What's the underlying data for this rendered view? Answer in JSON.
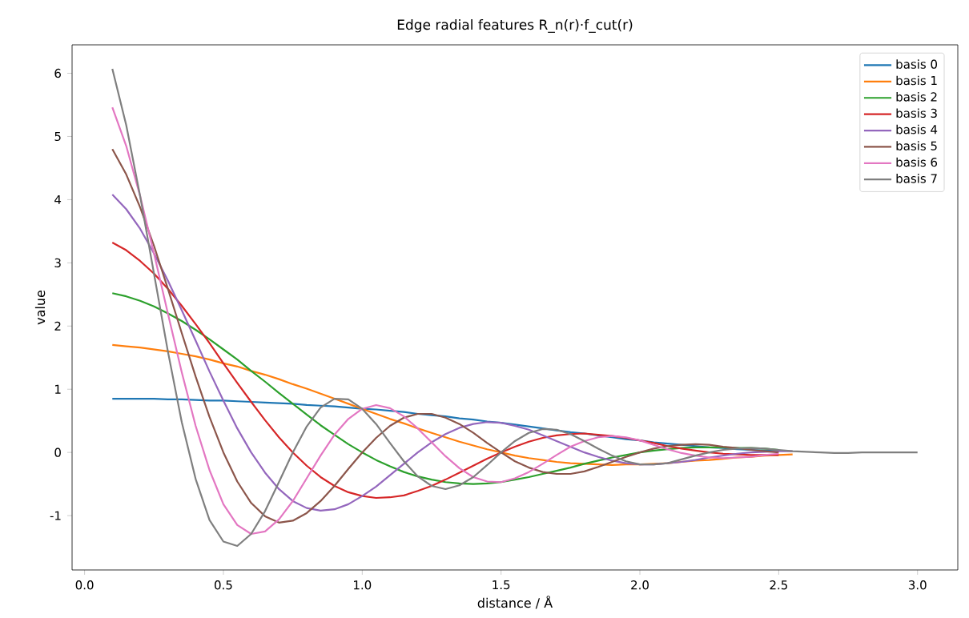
{
  "chart_data": {
    "type": "line",
    "title": "Edge radial features  R_n(r)·f_cut(r)",
    "xlabel": "distance / Å",
    "ylabel": "value",
    "x": [
      0.1,
      0.15,
      0.2,
      0.25,
      0.3,
      0.35,
      0.4,
      0.45,
      0.5,
      0.55,
      0.6,
      0.65,
      0.7,
      0.75,
      0.8,
      0.85,
      0.9,
      0.95,
      1.0,
      1.05,
      1.1,
      1.15,
      1.2,
      1.25,
      1.3,
      1.35,
      1.4,
      1.45,
      1.5,
      1.55,
      1.6,
      1.65,
      1.7,
      1.75,
      1.8,
      1.85,
      1.9,
      1.95,
      2.0,
      2.05,
      2.1,
      2.15,
      2.2,
      2.25,
      2.3,
      2.35,
      2.4,
      2.45,
      2.5,
      2.55,
      2.6,
      2.65,
      2.7,
      2.75,
      2.8,
      2.85,
      2.9,
      2.95,
      3.0
    ],
    "xlim": [
      -0.045,
      3.145
    ],
    "ylim": [
      -1.86,
      6.45
    ],
    "xticks": [
      {
        "value": 0,
        "label": "0.0"
      },
      {
        "value": 0.5,
        "label": "0.5"
      },
      {
        "value": 1,
        "label": "1.0"
      },
      {
        "value": 1.5,
        "label": "1.5"
      },
      {
        "value": 2,
        "label": "2.0"
      },
      {
        "value": 2.5,
        "label": "2.5"
      },
      {
        "value": 3,
        "label": "3.0"
      }
    ],
    "yticks": [
      -1,
      0,
      1,
      2,
      3,
      4,
      5,
      6
    ],
    "legend": "top right",
    "grid": false,
    "marker": "none",
    "line_style": "solid",
    "series": [
      {
        "name": "basis 0",
        "color": "#1f77b4",
        "values": [
          0.85,
          0.85,
          0.85,
          0.85,
          0.84,
          0.84,
          0.83,
          0.82,
          0.82,
          0.81,
          0.8,
          0.79,
          0.78,
          0.77,
          0.75,
          0.74,
          0.73,
          0.71,
          0.69,
          0.68,
          0.66,
          0.64,
          0.61,
          0.59,
          0.57,
          0.54,
          0.52,
          0.49,
          0.47,
          0.44,
          0.41,
          0.38,
          0.35,
          0.32,
          0.3,
          0.27,
          0.24,
          0.21,
          0.19,
          0.16,
          0.14,
          0.12,
          0.1,
          0.08,
          0.07,
          0.05,
          0.04,
          0.03,
          0.02,
          null,
          null,
          null,
          null,
          null,
          null,
          null,
          null,
          null,
          null
        ]
      },
      {
        "name": "basis 1",
        "color": "#ff7f0e",
        "values": [
          1.7,
          1.68,
          1.66,
          1.63,
          1.6,
          1.56,
          1.52,
          1.47,
          1.41,
          1.36,
          1.29,
          1.23,
          1.16,
          1.08,
          1.01,
          0.93,
          0.85,
          0.77,
          0.69,
          0.61,
          0.53,
          0.46,
          0.38,
          0.31,
          0.24,
          0.17,
          0.11,
          0.05,
          0,
          -0.05,
          -0.09,
          -0.12,
          -0.15,
          -0.17,
          -0.18,
          -0.19,
          -0.2,
          -0.19,
          -0.19,
          -0.18,
          -0.17,
          -0.15,
          -0.13,
          -0.12,
          -0.1,
          -0.08,
          -0.07,
          -0.05,
          -0.04,
          -0.03,
          null,
          null,
          null,
          null,
          null,
          null,
          null,
          null,
          null
        ]
      },
      {
        "name": "basis 2",
        "color": "#2ca02c",
        "values": [
          2.52,
          2.47,
          2.4,
          2.31,
          2.2,
          2.08,
          1.94,
          1.79,
          1.63,
          1.47,
          1.29,
          1.12,
          0.94,
          0.77,
          0.6,
          0.43,
          0.28,
          0.13,
          0,
          -0.12,
          -0.22,
          -0.31,
          -0.38,
          -0.43,
          -0.47,
          -0.49,
          -0.5,
          -0.49,
          -0.47,
          -0.43,
          -0.39,
          -0.34,
          -0.29,
          -0.24,
          -0.18,
          -0.13,
          -0.08,
          -0.04,
          0,
          0.03,
          0.05,
          0.07,
          0.08,
          0.08,
          0.08,
          0.07,
          0.07,
          0.06,
          0.04,
          null,
          null,
          null,
          null,
          null,
          null,
          null,
          null,
          null,
          null
        ]
      },
      {
        "name": "basis 3",
        "color": "#d62728",
        "values": [
          3.32,
          3.2,
          3.03,
          2.83,
          2.59,
          2.32,
          2.03,
          1.73,
          1.41,
          1.1,
          0.8,
          0.51,
          0.24,
          0,
          -0.21,
          -0.39,
          -0.53,
          -0.63,
          -0.69,
          -0.72,
          -0.71,
          -0.68,
          -0.61,
          -0.53,
          -0.43,
          -0.32,
          -0.21,
          -0.1,
          0,
          0.09,
          0.17,
          0.23,
          0.27,
          0.29,
          0.3,
          0.28,
          0.26,
          0.23,
          0.19,
          0.15,
          0.1,
          0.06,
          0.03,
          0,
          -0.02,
          -0.03,
          -0.04,
          -0.04,
          -0.04,
          null,
          null,
          null,
          null,
          null,
          null,
          null,
          null,
          null,
          null
        ]
      },
      {
        "name": "basis 4",
        "color": "#9467bd",
        "values": [
          4.08,
          3.85,
          3.54,
          3.15,
          2.72,
          2.25,
          1.77,
          1.28,
          0.82,
          0.38,
          0,
          -0.32,
          -0.58,
          -0.77,
          -0.88,
          -0.92,
          -0.9,
          -0.82,
          -0.69,
          -0.54,
          -0.36,
          -0.18,
          0,
          0.16,
          0.29,
          0.39,
          0.45,
          0.48,
          0.47,
          0.42,
          0.36,
          0.27,
          0.18,
          0.09,
          0,
          -0.07,
          -0.13,
          -0.17,
          -0.19,
          -0.19,
          -0.17,
          -0.15,
          -0.12,
          -0.08,
          -0.05,
          -0.02,
          0,
          0.01,
          0.02,
          0.02,
          null,
          null,
          null,
          null,
          null,
          null,
          null,
          null,
          null
        ]
      },
      {
        "name": "basis 5",
        "color": "#8c564b",
        "values": [
          4.8,
          4.4,
          3.88,
          3.27,
          2.59,
          1.89,
          1.2,
          0.56,
          0,
          -0.46,
          -0.8,
          -1.01,
          -1.11,
          -1.08,
          -0.96,
          -0.77,
          -0.53,
          -0.26,
          0,
          0.23,
          0.42,
          0.55,
          0.61,
          0.61,
          0.55,
          0.45,
          0.31,
          0.15,
          0,
          -0.14,
          -0.24,
          -0.31,
          -0.34,
          -0.34,
          -0.3,
          -0.23,
          -0.15,
          -0.07,
          0,
          0.06,
          0.1,
          0.12,
          0.13,
          0.12,
          0.09,
          0.07,
          0.04,
          0.02,
          0,
          null,
          null,
          null,
          null,
          null,
          null,
          null,
          null,
          null,
          null
        ]
      },
      {
        "name": "basis 6",
        "color": "#e377c2",
        "values": [
          5.46,
          4.85,
          4.06,
          3.15,
          2.2,
          1.27,
          0.42,
          -0.28,
          -0.82,
          -1.15,
          -1.29,
          -1.25,
          -1.06,
          -0.77,
          -0.41,
          -0.05,
          0.28,
          0.53,
          0.69,
          0.75,
          0.7,
          0.57,
          0.38,
          0.16,
          -0.06,
          -0.25,
          -0.39,
          -0.46,
          -0.47,
          -0.41,
          -0.31,
          -0.18,
          -0.04,
          0.09,
          0.18,
          0.24,
          0.26,
          0.24,
          0.19,
          0.12,
          0.05,
          -0.01,
          -0.05,
          -0.08,
          -0.09,
          -0.08,
          -0.07,
          -0.04,
          -0.02,
          null,
          null,
          null,
          null,
          null,
          null,
          null,
          null,
          null,
          null
        ]
      },
      {
        "name": "basis 7",
        "color": "#7f7f7f",
        "values": [
          6.07,
          5.18,
          4.06,
          2.83,
          1.6,
          0.48,
          -0.42,
          -1.07,
          -1.41,
          -1.48,
          -1.29,
          -0.93,
          -0.47,
          0,
          0.41,
          0.71,
          0.85,
          0.84,
          0.69,
          0.45,
          0.15,
          -0.14,
          -0.38,
          -0.53,
          -0.58,
          -0.52,
          -0.39,
          -0.2,
          0,
          0.18,
          0.31,
          0.37,
          0.36,
          0.29,
          0.18,
          0.06,
          -0.05,
          -0.14,
          -0.19,
          -0.19,
          -0.17,
          -0.11,
          -0.05,
          0,
          0.04,
          0.06,
          0.07,
          0.06,
          0.04,
          0.02,
          0.01,
          0,
          -0.01,
          -0.01,
          0,
          0,
          0,
          0,
          0
        ]
      }
    ]
  }
}
